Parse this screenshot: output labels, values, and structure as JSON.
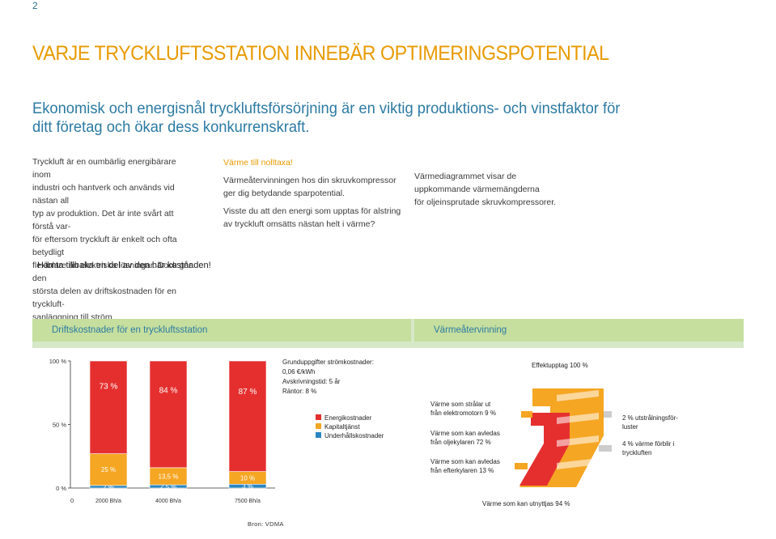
{
  "page_number": "2",
  "title": "VARJE TRYCKLUFTSSTATION INNEBÄR OPTIMERINGSPOTENTIAL",
  "subtitle": "Ekonomisk och energisnål tryckluftsförsörjning är en viktig produktions- och vinstfaktor för ditt företag och ökar dess konkurrenskraft.",
  "col1": [
    "Tryckluft är en oumbärlig energibärare inom",
    "industri och hantverk och används vid nästan all",
    "typ av produktion. Det är inte svårt att förstå var-",
    "för eftersom tryckluft är enkelt och ofta betydligt",
    "flexiblare än elektriska lösningar. Dock går den",
    "största delen av driftskostnaden för en tryckluft-",
    "sanläggning till ström."
  ],
  "col2": {
    "heading": "Värme till nolltaxa!",
    "lines1": [
      "Värmeåtervinningen hos din skruvkompressor",
      "ger dig betydande sparpotential."
    ],
    "lines2": [
      "Visste du att den energi som upptas för alstring",
      "av tryckluft omsätts nästan helt i värme?"
    ]
  },
  "col3": [
    "Värmediagrammet visar de",
    "uppkommande värmemängderna",
    "för oljeinsprutade skruvkompressorer."
  ],
  "cta": "Hämta tillbaka en del av den här kostnaden!",
  "panel": {
    "left_header": "Driftskostnader för en tryckluftsstation",
    "right_header": "Värmeåtervinning"
  },
  "source": "Bron: VDMA",
  "colors": {
    "energy": "#e52f2f",
    "capital": "#f5a623",
    "maintenance": "#2a86c1",
    "title_orange": "#e89a00",
    "blue": "#2b7aa3"
  },
  "chart_data": [
    {
      "type": "bar",
      "stacked": true,
      "categories": [
        "2000 Bh/a",
        "4000 Bh/a",
        "7500 Bh/a"
      ],
      "series": [
        {
          "name": "Underhållskostnader",
          "values": [
            2,
            2.5,
            3
          ],
          "labels": [
            "2 %",
            "2,5 %",
            "3 %"
          ],
          "color": "#2a86c1"
        },
        {
          "name": "Kapitaltjänst",
          "values": [
            25,
            13.5,
            10
          ],
          "labels": [
            "25 %",
            "13,5 %",
            "10 %"
          ],
          "color": "#f5a623"
        },
        {
          "name": "Energikostnader",
          "values": [
            73,
            84,
            87
          ],
          "labels": [
            "73 %",
            "84 %",
            "87 %"
          ],
          "color": "#e52f2f"
        }
      ],
      "y_ticks": [
        "0 %",
        "50 %",
        "100 %"
      ],
      "x_origin_label": "0",
      "ylim": [
        0,
        100
      ],
      "info": [
        "Grunduppgifter strömkostnader:",
        "0,06 €/kWh",
        "Avskrivningstid: 5 år",
        "Räntor: 8 %"
      ]
    },
    {
      "type": "sankey",
      "input": "Effektupptag 100 %",
      "flows": [
        {
          "label": [
            "Värme som strålar ut",
            "från elektromotorn 9 %"
          ],
          "value": 9
        },
        {
          "label": [
            "Värme som kan avledas",
            "från oljekylaren 72 %"
          ],
          "value": 72
        },
        {
          "label": [
            "Värme som kan avledas",
            "från efterkylaren 13 %"
          ],
          "value": 13
        },
        {
          "label": [
            "2 % utstrålningsför-",
            "luster"
          ],
          "value": 2
        },
        {
          "label": [
            "4 % värme förblir i",
            "tryckluften"
          ],
          "value": 4
        }
      ],
      "output": "Värme som kan utnyttjas 94 %"
    }
  ]
}
